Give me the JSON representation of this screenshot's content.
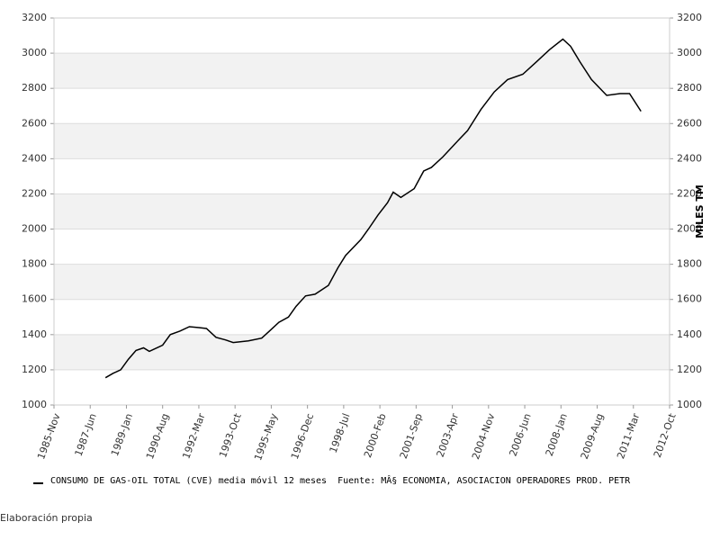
{
  "chart_data": {
    "type": "line",
    "x": [
      "1988-02",
      "1988-06",
      "1988-10",
      "1989-02",
      "1989-06",
      "1989-10",
      "1990-01",
      "1990-08",
      "1990-12",
      "1991-05",
      "1991-10",
      "1992-03",
      "1992-07",
      "1992-12",
      "1993-05",
      "1993-09",
      "1994-05",
      "1994-12",
      "1995-04",
      "1995-09",
      "1996-02",
      "1996-06",
      "1996-11",
      "1997-04",
      "1997-11",
      "1998-04",
      "1998-08",
      "1999-04",
      "1999-08",
      "2000-01",
      "2000-06",
      "2000-09",
      "2001-01",
      "2001-08",
      "2002-01",
      "2002-05",
      "2002-11",
      "2003-05",
      "2003-12",
      "2004-07",
      "2005-02",
      "2005-09",
      "2006-05",
      "2006-12",
      "2007-07",
      "2008-02",
      "2008-06",
      "2008-11",
      "2009-05",
      "2010-01",
      "2010-08",
      "2011-01",
      "2011-07"
    ],
    "series": [
      {
        "name": "CONSUMO DE GAS-OIL TOTAL (CVE) media móvil 12 meses  Fuente: MÂ§ ECONOMIA, ASOCIACION OPERADORES PROD. PETR",
        "color": "#000000",
        "values": [
          1155,
          1180,
          1200,
          1260,
          1310,
          1325,
          1305,
          1340,
          1400,
          1420,
          1445,
          1440,
          1435,
          1385,
          1370,
          1355,
          1365,
          1380,
          1420,
          1470,
          1500,
          1560,
          1620,
          1630,
          1680,
          1780,
          1850,
          1940,
          2000,
          2080,
          2150,
          2210,
          2180,
          2230,
          2330,
          2350,
          2410,
          2480,
          2560,
          2680,
          2780,
          2850,
          2880,
          2950,
          3020,
          3080,
          3040,
          2950,
          2850,
          2760,
          2770,
          2770,
          2670
        ]
      }
    ],
    "xlim": [
      "1985-11",
      "2012-10"
    ],
    "xticks": [
      {
        "value": "1985-11",
        "label": "1985-Nov"
      },
      {
        "value": "1987-06",
        "label": "1987-Jun"
      },
      {
        "value": "1989-01",
        "label": "1989-Jan"
      },
      {
        "value": "1990-08",
        "label": "1990-Aug"
      },
      {
        "value": "1992-03",
        "label": "1992-Mar"
      },
      {
        "value": "1993-10",
        "label": "1993-Oct"
      },
      {
        "value": "1995-05",
        "label": "1995-May"
      },
      {
        "value": "1996-12",
        "label": "1996-Dec"
      },
      {
        "value": "1998-07",
        "label": "1998-Jul"
      },
      {
        "value": "2000-02",
        "label": "2000-Feb"
      },
      {
        "value": "2001-09",
        "label": "2001-Sep"
      },
      {
        "value": "2003-04",
        "label": "2003-Apr"
      },
      {
        "value": "2004-11",
        "label": "2004-Nov"
      },
      {
        "value": "2006-06",
        "label": "2006-Jun"
      },
      {
        "value": "2008-01",
        "label": "2008-Jan"
      },
      {
        "value": "2009-08",
        "label": "2009-Aug"
      },
      {
        "value": "2011-03",
        "label": "2011-Mar"
      },
      {
        "value": "2012-10",
        "label": "2012-Oct"
      }
    ],
    "ylim": [
      1000,
      3200
    ],
    "yticks": [
      1000,
      1200,
      1400,
      1600,
      1800,
      2000,
      2200,
      2400,
      2600,
      2800,
      3000,
      3200
    ],
    "y2label": "MILES TM",
    "bands": true,
    "footer": "Elaboración propia"
  }
}
